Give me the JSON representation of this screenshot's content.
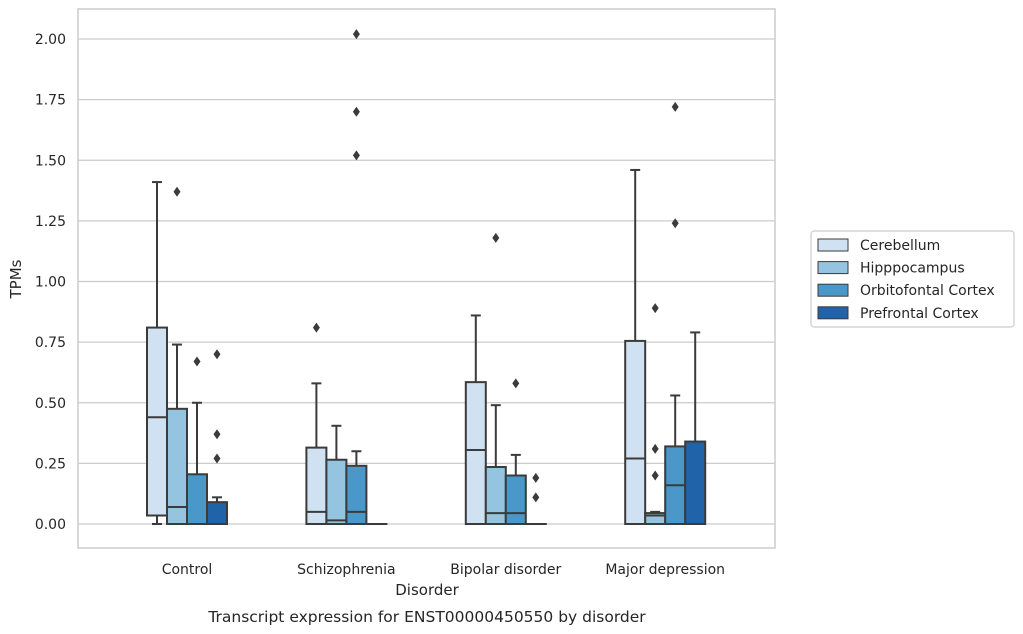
{
  "chart_data": {
    "type": "box",
    "caption": "Transcript expression for ENST00000450550 by disorder",
    "xlabel": "Disorder",
    "ylabel": "TPMs",
    "ylim": [
      -0.1,
      2.12
    ],
    "yticks": [
      "0.00",
      "0.25",
      "0.50",
      "0.75",
      "1.00",
      "1.25",
      "1.50",
      "1.75",
      "2.00"
    ],
    "grid": "horizontal",
    "legend_position": "right",
    "categories": [
      "Control",
      "Schizophrenia",
      "Bipolar disorder",
      "Major depression"
    ],
    "series": [
      {
        "name": "Cerebellum",
        "color": "#d0e1f2",
        "boxes": [
          {
            "q1": 0.035,
            "median": 0.44,
            "q3": 0.81,
            "whisker_low": 0.0,
            "whisker_high": 1.41,
            "outliers": []
          },
          {
            "q1": 0.0,
            "median": 0.05,
            "q3": 0.315,
            "whisker_low": 0.0,
            "whisker_high": 0.58,
            "outliers": [
              0.81
            ]
          },
          {
            "q1": 0.0,
            "median": 0.305,
            "q3": 0.585,
            "whisker_low": 0.0,
            "whisker_high": 0.86,
            "outliers": []
          },
          {
            "q1": 0.0,
            "median": 0.27,
            "q3": 0.755,
            "whisker_low": 0.0,
            "whisker_high": 1.46,
            "outliers": []
          }
        ]
      },
      {
        "name": "Hipppocampus",
        "color": "#94c4df",
        "boxes": [
          {
            "q1": 0.0,
            "median": 0.07,
            "q3": 0.475,
            "whisker_low": 0.0,
            "whisker_high": 0.74,
            "outliers": [
              1.37
            ]
          },
          {
            "q1": 0.0,
            "median": 0.015,
            "q3": 0.265,
            "whisker_low": 0.0,
            "whisker_high": 0.405,
            "outliers": []
          },
          {
            "q1": 0.0,
            "median": 0.045,
            "q3": 0.235,
            "whisker_low": 0.0,
            "whisker_high": 0.49,
            "outliers": [
              1.18
            ]
          },
          {
            "q1": 0.0,
            "median": 0.035,
            "q3": 0.045,
            "whisker_low": 0.0,
            "whisker_high": 0.05,
            "outliers": [
              0.2,
              0.31,
              0.89
            ]
          }
        ]
      },
      {
        "name": "Orbitofontal Cortex",
        "color": "#4a98c9",
        "boxes": [
          {
            "q1": 0.0,
            "median": 0.0,
            "q3": 0.205,
            "whisker_low": 0.0,
            "whisker_high": 0.5,
            "outliers": [
              0.67
            ]
          },
          {
            "q1": 0.0,
            "median": 0.05,
            "q3": 0.24,
            "whisker_low": 0.0,
            "whisker_high": 0.3,
            "outliers": [
              1.52,
              1.7,
              2.02
            ]
          },
          {
            "q1": 0.0,
            "median": 0.045,
            "q3": 0.2,
            "whisker_low": 0.0,
            "whisker_high": 0.285,
            "outliers": [
              0.58
            ]
          },
          {
            "q1": 0.0,
            "median": 0.16,
            "q3": 0.32,
            "whisker_low": 0.0,
            "whisker_high": 0.53,
            "outliers": [
              1.24,
              1.72
            ]
          }
        ]
      },
      {
        "name": "Prefrontal Cortex",
        "color": "#2163a8",
        "boxes": [
          {
            "q1": 0.0,
            "median": 0.0,
            "q3": 0.09,
            "whisker_low": 0.0,
            "whisker_high": 0.11,
            "outliers": [
              0.27,
              0.37,
              0.7
            ]
          },
          {
            "q1": 0.0,
            "median": 0.0,
            "q3": 0.0,
            "whisker_low": 0.0,
            "whisker_high": 0.0,
            "outliers": []
          },
          {
            "q1": 0.0,
            "median": 0.0,
            "q3": 0.0,
            "whisker_low": 0.0,
            "whisker_high": 0.0,
            "outliers": [
              0.11,
              0.19
            ]
          },
          {
            "q1": 0.0,
            "median": 0.0,
            "q3": 0.34,
            "whisker_low": 0.0,
            "whisker_high": 0.79,
            "outliers": []
          }
        ]
      }
    ]
  }
}
